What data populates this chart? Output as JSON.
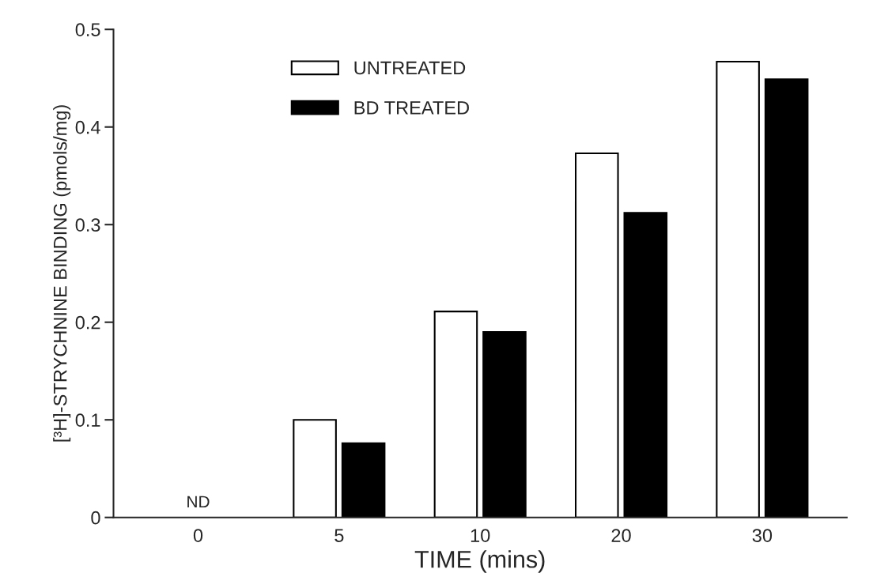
{
  "chart_data": {
    "type": "bar",
    "xlabel": "TIME (mins)",
    "ylabel": "[³H]-STRYCHNINE BINDING (pmols/mg)",
    "categories": [
      "0",
      "5",
      "10",
      "20",
      "30"
    ],
    "series": [
      {
        "name": "UNTREATED",
        "color": "#ffffff",
        "values": [
          null,
          0.1,
          0.211,
          0.373,
          0.467
        ]
      },
      {
        "name": "BD TREATED",
        "color": "#000000",
        "values": [
          null,
          0.076,
          0.19,
          0.312,
          0.449
        ]
      }
    ],
    "ylim": [
      0,
      0.5
    ],
    "yticks": [
      0,
      0.1,
      0.2,
      0.3,
      0.4,
      0.5
    ],
    "annotations": [
      "ND"
    ],
    "legend": "top left",
    "grid": false
  }
}
